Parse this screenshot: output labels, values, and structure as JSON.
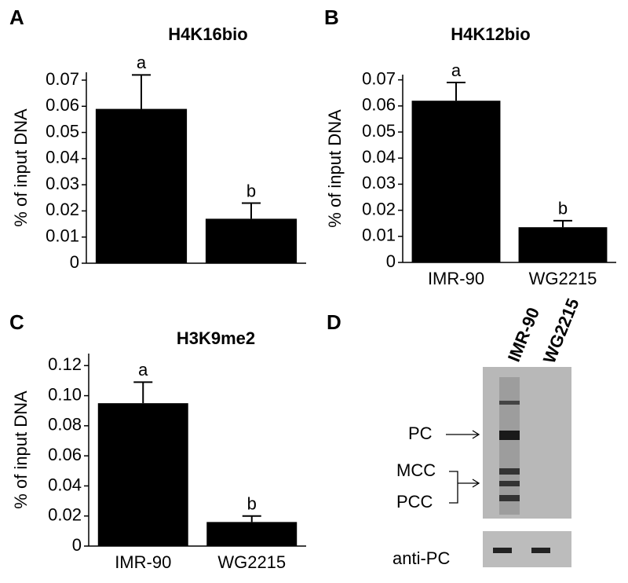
{
  "panel_labels": [
    "A",
    "B",
    "C",
    "D"
  ],
  "chart_data": [
    {
      "type": "bar",
      "title": "H4K16bio",
      "ylabel": "% of input DNA",
      "categories": [
        null,
        null
      ],
      "values": [
        0.059,
        0.017
      ],
      "errors": [
        0.013,
        0.006
      ],
      "annotations": [
        "a",
        "b"
      ],
      "color": "#000000",
      "ylim": [
        0,
        0.073
      ],
      "yticks": [
        0,
        0.01,
        0.02,
        0.03,
        0.04,
        0.05,
        0.06,
        0.07
      ]
    },
    {
      "type": "bar",
      "title": "H4K12bio",
      "ylabel": "% of input DNA",
      "categories": [
        "IMR-90",
        "WG2215"
      ],
      "values": [
        0.062,
        0.0135
      ],
      "errors": [
        0.007,
        0.0025
      ],
      "annotations": [
        "a",
        "b"
      ],
      "color": "#000000",
      "ylim": [
        0,
        0.072
      ],
      "yticks": [
        0,
        0.01,
        0.02,
        0.03,
        0.04,
        0.05,
        0.06,
        0.07
      ]
    },
    {
      "type": "bar",
      "title": "H3K9me2",
      "ylabel": "% of input DNA",
      "categories": [
        "IMR-90",
        "WG2215"
      ],
      "values": [
        0.095,
        0.016
      ],
      "errors": [
        0.014,
        0.004
      ],
      "annotations": [
        "a",
        "b"
      ],
      "color": "#000000",
      "ylim": [
        0,
        0.128
      ],
      "yticks": [
        0,
        0.02,
        0.04,
        0.06,
        0.08,
        {
          "value": 0.1,
          "label": "0.10"
        },
        0.12
      ]
    }
  ],
  "blot": {
    "lanes": [
      "IMR-90",
      "WG2215"
    ],
    "bands": [
      "PC",
      "MCC",
      "PCC"
    ],
    "antibody": "anti-PC"
  }
}
